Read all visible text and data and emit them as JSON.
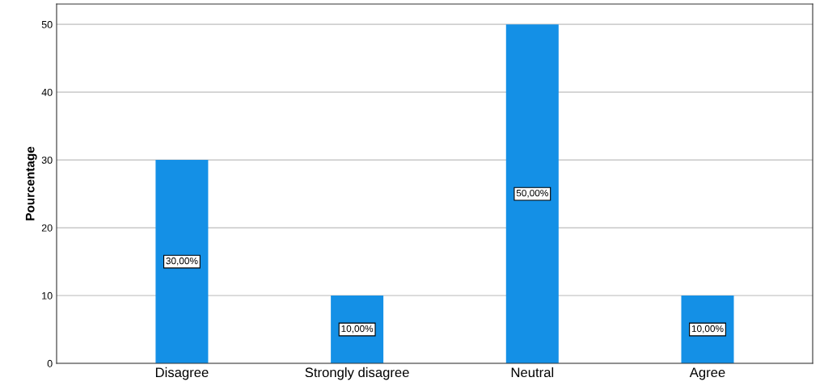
{
  "chart_data": {
    "type": "bar",
    "ylabel": "Pourcentage",
    "categories": [
      "Disagree",
      "Strongly disagree",
      "Neutral",
      "Agree"
    ],
    "values": [
      30,
      10,
      50,
      10
    ],
    "value_labels": [
      "30,00%",
      "10,00%",
      "50,00%",
      "10,00%"
    ],
    "color": "#1490e6",
    "ylim": [
      0,
      53
    ],
    "yticks": [
      0,
      10,
      20,
      30,
      40,
      50
    ],
    "grid": "y"
  }
}
